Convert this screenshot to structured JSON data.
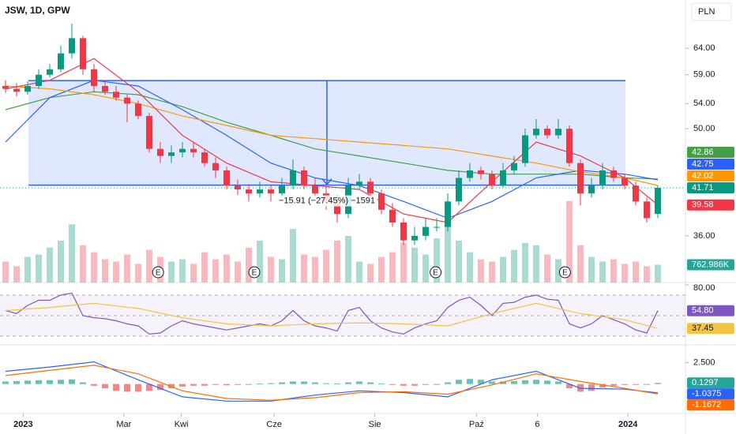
{
  "header": {
    "title": "JSW, 1D, GPW",
    "currency": "PLN"
  },
  "chart_data": [
    {
      "type": "candlestick",
      "log_scale": true,
      "up_color": "#089981",
      "down_color": "#f23645",
      "xlim": [
        -0.5,
        61.5
      ],
      "xticks": [
        {
          "value": 1.6,
          "label": "2023"
        },
        {
          "value": 10.7,
          "label": "Mar"
        },
        {
          "value": 15.9,
          "label": "Kwi"
        },
        {
          "value": 24.3,
          "label": "Cze"
        },
        {
          "value": 33.4,
          "label": "Sie"
        },
        {
          "value": 42.6,
          "label": "Paź"
        },
        {
          "value": 48.1,
          "label": "6"
        },
        {
          "value": 56.3,
          "label": "2024"
        }
      ],
      "ylim": [
        31.2,
        74.2
      ],
      "yticks": [
        {
          "value": 36,
          "label": "36.00"
        },
        {
          "value": 50,
          "label": "50.00"
        },
        {
          "value": 54,
          "label": "54.00"
        },
        {
          "value": 59,
          "label": "59.00"
        },
        {
          "value": 64,
          "label": "64.00"
        }
      ],
      "open": [
        57,
        56.5,
        56,
        57,
        59,
        60,
        63,
        66,
        60,
        57,
        56,
        55,
        54,
        52,
        47,
        46,
        46.5,
        47,
        46.5,
        45,
        44,
        42,
        41.5,
        41,
        41.5,
        41,
        42,
        44,
        42,
        41,
        40,
        38.5,
        42,
        42.5,
        41,
        39,
        37.5,
        35.5,
        36,
        37,
        37,
        40,
        43,
        44,
        43.5,
        42,
        44,
        45,
        49,
        50,
        49,
        50,
        45,
        41,
        42,
        44,
        43,
        42,
        40,
        38.5
      ],
      "high": [
        58,
        57.5,
        57.8,
        60,
        61,
        64.5,
        69,
        66.5,
        61,
        58,
        57,
        55.5,
        54.5,
        52.5,
        48,
        47.5,
        48,
        48,
        47,
        45.8,
        44.5,
        42.8,
        42.2,
        42.5,
        42,
        43,
        45.5,
        44.5,
        43,
        41.8,
        40.8,
        43,
        43.5,
        43,
        41.5,
        39.8,
        38,
        37,
        38,
        38,
        41,
        44,
        45,
        44.5,
        44,
        45,
        46,
        50,
        51.5,
        50.5,
        51.5,
        50.5,
        45.5,
        43,
        45,
        44.5,
        43.5,
        42.5,
        40.5,
        42
      ],
      "low": [
        55.8,
        55.2,
        55.5,
        56.5,
        58.5,
        59.5,
        62,
        59,
        56,
        55.5,
        54.5,
        51,
        51.5,
        46.5,
        45,
        45,
        45.8,
        45.8,
        44.5,
        43,
        41.5,
        40.8,
        40,
        40.5,
        40,
        40.5,
        41.5,
        41.5,
        40.5,
        39,
        37.5,
        38,
        41.5,
        40.5,
        38.5,
        37,
        35,
        35,
        35.5,
        36.5,
        36.5,
        39.5,
        42.5,
        42.8,
        41.5,
        41.8,
        43.5,
        44.5,
        48.5,
        48.5,
        48.5,
        44.5,
        39.5,
        40.5,
        41.5,
        42.5,
        41.5,
        39.5,
        37.5,
        38
      ],
      "close": [
        56.5,
        56,
        57,
        59,
        60,
        63,
        66,
        60,
        57,
        56,
        55,
        54,
        52,
        47,
        46,
        46.5,
        47,
        46.5,
        45,
        44,
        42,
        41.5,
        41,
        41.5,
        41,
        42,
        44,
        42,
        41,
        40,
        38.5,
        42,
        42.5,
        41,
        39,
        37.5,
        35.5,
        36,
        37,
        37,
        40,
        43,
        44,
        43.5,
        42,
        44,
        45,
        49,
        50,
        49,
        50,
        45,
        41,
        42,
        44,
        43,
        42,
        40,
        38,
        41.71
      ],
      "ma": [
        {
          "color": "#43a047",
          "x": [
            0,
            4,
            8,
            12,
            16,
            20,
            24,
            28,
            32,
            36,
            40,
            44,
            48,
            52,
            56,
            59
          ],
          "values": [
            53,
            55,
            56,
            55.5,
            53.5,
            51,
            49,
            47,
            46,
            45,
            44,
            43.5,
            43.5,
            43.5,
            43,
            42.86
          ]
        },
        {
          "color": "#2962ff",
          "x": [
            0,
            4,
            8,
            12,
            16,
            20,
            24,
            28,
            32,
            36,
            40,
            44,
            48,
            52,
            56,
            59
          ],
          "values": [
            48,
            55,
            58,
            57,
            53,
            49,
            45,
            43,
            42,
            40,
            38,
            40,
            43,
            44,
            43.5,
            42.75
          ]
        },
        {
          "color": "#ff9800",
          "x": [
            0,
            4,
            8,
            12,
            16,
            20,
            24,
            28,
            32,
            36,
            40,
            44,
            48,
            52,
            56,
            59
          ],
          "values": [
            57,
            56.5,
            55.5,
            54,
            52,
            50.5,
            49,
            48.5,
            48,
            47.5,
            47,
            46,
            45,
            43.8,
            43,
            42.02
          ]
        },
        {
          "color": "#f23645",
          "x": [
            0,
            4,
            8,
            12,
            16,
            20,
            24,
            28,
            32,
            36,
            40,
            44,
            48,
            52,
            56,
            59
          ],
          "values": [
            56.5,
            58,
            62,
            56,
            49,
            45,
            42.5,
            42,
            41.5,
            38.5,
            37.5,
            42.5,
            48,
            46,
            43,
            39.58
          ]
        }
      ],
      "volume": {
        "values": [
          900,
          700,
          1100,
          1200,
          1500,
          1800,
          2500,
          1600,
          1300,
          1000,
          900,
          1200,
          800,
          1400,
          1100,
          900,
          1000,
          800,
          1300,
          1000,
          1200,
          900,
          1500,
          1800,
          1100,
          1000,
          2300,
          1200,
          1100,
          1400,
          1800,
          2000,
          900,
          800,
          1100,
          1300,
          1700,
          1500,
          1200,
          1900,
          2600,
          1800,
          1300,
          1000,
          900,
          1100,
          1400,
          1700,
          1600,
          1200,
          1000,
          3500,
          1600,
          1100,
          900,
          1000,
          800,
          900,
          700,
          762.986
        ],
        "ylim": [
          0,
          4000
        ],
        "last_label": "762.986K"
      },
      "events": [
        {
          "x": 13.8,
          "label": "E"
        },
        {
          "x": 22.5,
          "label": "E"
        },
        {
          "x": 38.9,
          "label": "E"
        },
        {
          "x": 50.6,
          "label": "E"
        }
      ],
      "measure": {
        "x": [
          2.07,
          56.07
        ],
        "y": [
          42.05,
          57.96
        ],
        "label": "−15.91 (−27.45%) −1591"
      }
    },
    {
      "type": "line",
      "ylim": [
        23.8,
        82.3
      ],
      "yticks": [
        {
          "value": 80,
          "label": "80.00"
        }
      ],
      "levels": [
        70,
        50,
        30
      ],
      "series": [
        {
          "color": "#7e57c2",
          "values": [
            55,
            52,
            60,
            65,
            65,
            70,
            72,
            50,
            48,
            47,
            45,
            42,
            40,
            32,
            33,
            40,
            45,
            42,
            40,
            38,
            36,
            38,
            40,
            42,
            40,
            45,
            55,
            45,
            40,
            38,
            35,
            55,
            58,
            45,
            38,
            34,
            32,
            38,
            42,
            45,
            58,
            65,
            68,
            60,
            50,
            62,
            63,
            68,
            70,
            66,
            65,
            42,
            38,
            42,
            50,
            46,
            42,
            36,
            33,
            54.8
          ],
          "last_label": "54.80"
        },
        {
          "color": "#f5c542",
          "x": [
            0,
            4,
            8,
            12,
            16,
            20,
            24,
            28,
            32,
            36,
            40,
            44,
            48,
            52,
            56,
            59
          ],
          "values": [
            55,
            58,
            62,
            57,
            48,
            42,
            40,
            42,
            43,
            42,
            40,
            52,
            62,
            52,
            46,
            37.45
          ]
        }
      ]
    },
    {
      "type": "macd",
      "ylim": [
        -3.27,
        4.6
      ],
      "yticks": [
        {
          "value": 2.5,
          "label": "2.500"
        }
      ],
      "histogram": {
        "up_color": "#26a69a",
        "down_color": "#ef5350",
        "values": [
          0.3,
          0.35,
          0.4,
          0.45,
          0.45,
          0.5,
          0.55,
          0.2,
          -0.2,
          -0.5,
          -0.8,
          -0.9,
          -0.9,
          -0.8,
          -0.7,
          -0.5,
          -0.3,
          -0.2,
          -0.2,
          -0.1,
          -0.15,
          -0.1,
          0,
          0.05,
          0.1,
          0.2,
          0.3,
          0.3,
          0.2,
          0.1,
          0.05,
          0.2,
          0.3,
          0.2,
          0.05,
          -0.1,
          -0.2,
          -0.2,
          -0.1,
          0,
          0.2,
          0.5,
          0.6,
          0.5,
          0.3,
          0.3,
          0.35,
          0.45,
          0.5,
          0.4,
          0.3,
          -0.5,
          -0.9,
          -0.8,
          -0.4,
          -0.2,
          -0.1,
          -0.1,
          -0.05,
          0.1297
        ]
      },
      "series": [
        {
          "color": "#2962ff",
          "x": [
            0,
            4,
            8,
            12,
            16,
            20,
            24,
            28,
            32,
            36,
            40,
            44,
            48,
            52,
            56,
            59
          ],
          "values": [
            1.5,
            2.0,
            2.6,
            0.5,
            -1.5,
            -2.0,
            -2.0,
            -1.3,
            -0.8,
            -1.0,
            -1.5,
            0.5,
            1.5,
            -0.5,
            -0.6,
            -1.0375
          ]
        },
        {
          "color": "#ff6d00",
          "x": [
            0,
            4,
            8,
            12,
            16,
            20,
            24,
            28,
            32,
            36,
            40,
            44,
            48,
            52,
            56,
            59
          ],
          "values": [
            1.0,
            1.6,
            2.2,
            1.2,
            -0.8,
            -1.7,
            -1.9,
            -1.6,
            -1.0,
            -0.9,
            -1.2,
            -0.1,
            1.2,
            0.3,
            -0.5,
            -1.1672
          ]
        }
      ]
    }
  ]
}
